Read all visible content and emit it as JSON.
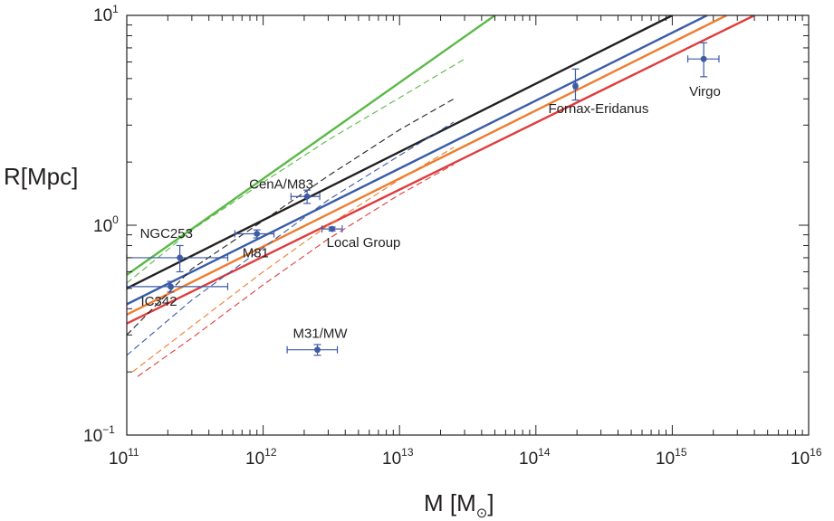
{
  "chart_data": {
    "type": "scatter",
    "xscale": "log",
    "yscale": "log",
    "xlim": [
      100000000000.0,
      1e+16
    ],
    "ylim": [
      0.1,
      10
    ],
    "grid": false,
    "x_ticks": [
      {
        "base": "10",
        "exp": "11"
      },
      {
        "base": "10",
        "exp": "12"
      },
      {
        "base": "10",
        "exp": "13"
      },
      {
        "base": "10",
        "exp": "14"
      },
      {
        "base": "10",
        "exp": "15"
      },
      {
        "base": "10",
        "exp": "16"
      }
    ],
    "y_ticks": [
      {
        "base": "10",
        "exp": "−1",
        "value": 0.1
      },
      {
        "base": "10",
        "exp": "0",
        "value": 1
      },
      {
        "base": "10",
        "exp": "1",
        "value": 10
      }
    ],
    "y_tick_labels": [
      "10−1",
      "10⁰",
      "10¹"
    ],
    "xlabel": {
      "main": "M [M",
      "sub": "⊙",
      "close": "]"
    },
    "ylabel": "R[Mpc]",
    "colors": {
      "green": "#5ab946",
      "black": "#231f20",
      "blue": "#3a5da8",
      "orange": "#ee7d2f",
      "red": "#e03c3c",
      "point": "#3d5aa7"
    },
    "lines": [
      {
        "color": "green",
        "style": "solid",
        "points": [
          [
            100000000000.0,
            0.58
          ],
          [
            50000000000000.0,
            10
          ]
        ]
      },
      {
        "color": "black",
        "style": "solid",
        "points": [
          [
            100000000000.0,
            0.5
          ],
          [
            1000000000000000.0,
            10
          ]
        ]
      },
      {
        "color": "blue",
        "style": "solid",
        "points": [
          [
            100000000000.0,
            0.42
          ],
          [
            1800000000000000.0,
            10
          ]
        ]
      },
      {
        "color": "orange",
        "style": "solid",
        "points": [
          [
            100000000000.0,
            0.375
          ],
          [
            2500000000000000.0,
            10
          ]
        ]
      },
      {
        "color": "red",
        "style": "solid",
        "points": [
          [
            100000000000.0,
            0.34
          ],
          [
            4000000000000000.0,
            10
          ]
        ]
      },
      {
        "color": "green",
        "style": "dashed",
        "points": [
          [
            100000000000.0,
            0.53
          ],
          [
            300000000000.0,
            0.95
          ],
          [
            1000000000000.0,
            1.6
          ],
          [
            3000000000000.0,
            2.55
          ],
          [
            10000000000000.0,
            4.05
          ],
          [
            30000000000000.0,
            6.2
          ]
        ]
      },
      {
        "color": "black",
        "style": "dashed",
        "points": [
          [
            100000000000.0,
            0.3
          ],
          [
            300000000000.0,
            0.62
          ],
          [
            1000000000000.0,
            1.05
          ],
          [
            3000000000000.0,
            1.72
          ],
          [
            10000000000000.0,
            2.85
          ],
          [
            25000000000000.0,
            4.0
          ]
        ]
      },
      {
        "color": "blue",
        "style": "dashed",
        "points": [
          [
            100000000000.0,
            0.24
          ],
          [
            300000000000.0,
            0.44
          ],
          [
            1000000000000.0,
            0.78
          ],
          [
            3000000000000.0,
            1.32
          ],
          [
            10000000000000.0,
            2.15
          ],
          [
            25000000000000.0,
            3.1
          ]
        ]
      },
      {
        "color": "orange",
        "style": "dashed",
        "points": [
          [
            110000000000.0,
            0.2
          ],
          [
            300000000000.0,
            0.33
          ],
          [
            1000000000000.0,
            0.6
          ],
          [
            3000000000000.0,
            1.0
          ],
          [
            10000000000000.0,
            1.65
          ],
          [
            25000000000000.0,
            2.35
          ]
        ]
      },
      {
        "color": "red",
        "style": "dashed",
        "points": [
          [
            120000000000.0,
            0.19
          ],
          [
            300000000000.0,
            0.29
          ],
          [
            1000000000000.0,
            0.52
          ],
          [
            3000000000000.0,
            0.86
          ],
          [
            10000000000000.0,
            1.4
          ],
          [
            25000000000000.0,
            1.95
          ]
        ]
      }
    ],
    "points": [
      {
        "name": "Virgo",
        "x": 1700000000000000.0,
        "y": 6.2,
        "xerr": [
          1300000000000000.0,
          2200000000000000.0
        ],
        "yerr": [
          5.1,
          7.4
        ]
      },
      {
        "name": "Fornax-Eridanus",
        "x": 195000000000000.0,
        "y": 4.6,
        "xerr": [
          190000000000000.0,
          200000000000000.0
        ],
        "yerr": [
          3.95,
          5.55
        ]
      },
      {
        "name": "CenA/M83",
        "x": 2100000000000.0,
        "y": 1.37,
        "xerr": [
          1600000000000.0,
          2600000000000.0
        ],
        "yerr": [
          1.27,
          1.47
        ]
      },
      {
        "name": "NGC253",
        "x": 245000000000.0,
        "y": 0.7,
        "xerr": [
          100000000000.0,
          550000000000.0
        ],
        "yerr": [
          0.6,
          0.8
        ]
      },
      {
        "name": "M81",
        "x": 900000000000.0,
        "y": 0.91,
        "xerr": [
          620000000000.0,
          1200000000000.0
        ],
        "yerr": [
          0.87,
          0.95
        ]
      },
      {
        "name": "Local Group",
        "x": 3200000000000.0,
        "y": 0.96,
        "xerr": [
          2700000000000.0,
          3800000000000.0
        ],
        "yerr": [
          0.94,
          0.98
        ]
      },
      {
        "name": "IC342",
        "x": 210000000000.0,
        "y": 0.51,
        "xerr": [
          100000000000.0,
          550000000000.0
        ],
        "yerr": [
          0.48,
          0.54
        ]
      },
      {
        "name": "M31/MW",
        "x": 2500000000000.0,
        "y": 0.255,
        "xerr": [
          1500000000000.0,
          3500000000000.0
        ],
        "yerr": [
          0.24,
          0.27
        ]
      }
    ]
  }
}
